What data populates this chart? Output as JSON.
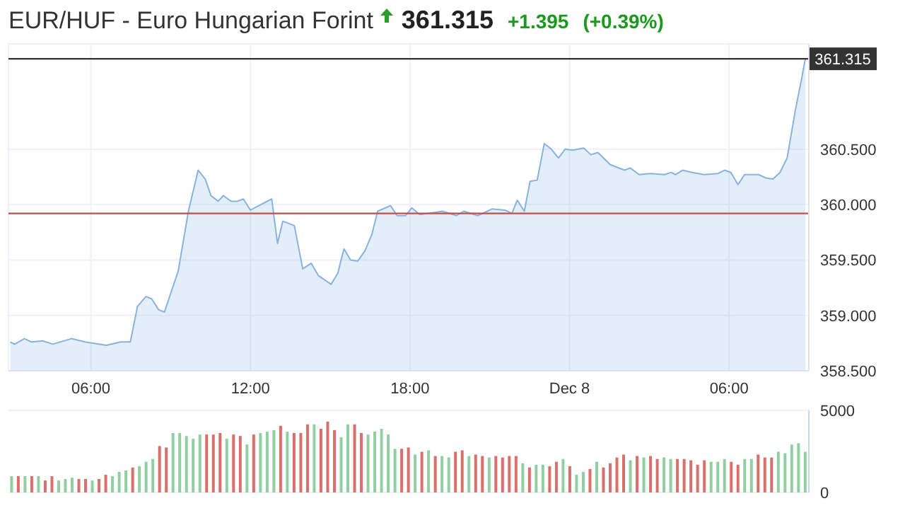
{
  "chart_data": [
    {
      "type": "area",
      "title": "EUR/HUF - Euro Hungarian Forint",
      "annotations": [
        "361.315",
        "+1.395",
        "(+0.39%)"
      ],
      "x": [
        "--12-07T02:58",
        "--12-07T03:08",
        "--12-07T03:30",
        "--12-07T03:46",
        "--12-07T04:11",
        "--12-07T04:34",
        "--12-07T05:16",
        "--12-07T05:47",
        "--12-07T06:35",
        "--12-07T07:07",
        "--12-07T07:29",
        "--12-07T07:45",
        "--12-07T08:04",
        "--12-07T08:17",
        "--12-07T08:33",
        "--12-07T08:46",
        "--12-07T09:17",
        "--12-07T09:40",
        "--12-07T10:02",
        "--12-07T10:18",
        "--12-07T10:31",
        "--12-07T10:47",
        "--12-07T10:59",
        "--12-07T11:16",
        "--12-07T11:31",
        "--12-07T11:44",
        "--12-07T12:00",
        "--12-07T12:19",
        "--12-07T12:48",
        "--12-07T13:01",
        "--12-07T13:13",
        "--12-07T13:39",
        "--12-07T13:58",
        "--12-07T14:17",
        "--12-07T14:33",
        "--12-07T15:02",
        "--12-07T15:17",
        "--12-07T15:31",
        "--12-07T15:46",
        "--12-07T16:02",
        "--12-07T16:18",
        "--12-07T16:34",
        "--12-07T16:47",
        "--12-07T17:16",
        "--12-07T17:31",
        "--12-07T17:50",
        "--12-07T18:04",
        "--12-07T18:22",
        "--12-07T18:41",
        "--12-07T19:13",
        "--12-07T19:45",
        "--12-07T20:01",
        "--12-07T20:33",
        "--12-07T21:05",
        "--12-07T21:34",
        "--12-07T21:50",
        "--12-07T22:02",
        "--12-07T22:18",
        "--12-07T22:31",
        "--12-07T22:47",
        "--12-07T23:03",
        "--12-07T23:19",
        "--12-07T23:35",
        "--12-07T23:50",
        "--12-08T00:07",
        "--12-08T00:32",
        "--12-08T00:48",
        "--12-08T01:04",
        "--12-08T01:32",
        "--12-08T02:04",
        "--12-08T02:17",
        "--12-08T02:37",
        "--12-08T03:02",
        "--12-08T03:34",
        "--12-08T03:50",
        "--12-08T03:59",
        "--12-08T04:15",
        "--12-08T04:37",
        "--12-08T05:03",
        "--12-08T05:35",
        "--12-08T05:50",
        "--12-08T06:04",
        "--12-08T06:20",
        "--12-08T06:35",
        "--12-08T07:07",
        "--12-08T07:23",
        "--12-08T07:39",
        "--12-08T07:55",
        "--12-08T08:11",
        "--12-08T08:30",
        "--12-08T08:43",
        "--12-08T08:52"
      ],
      "series": [
        {
          "color": "#86b3e0",
          "values": [
            358.76,
            358.74,
            358.79,
            358.76,
            358.77,
            358.74,
            358.79,
            358.76,
            358.73,
            358.76,
            358.76,
            359.08,
            359.17,
            359.15,
            359.05,
            359.03,
            359.4,
            359.94,
            360.31,
            360.23,
            360.08,
            360.03,
            360.08,
            360.03,
            360.03,
            360.05,
            359.95,
            359.99,
            360.05,
            359.65,
            359.85,
            359.81,
            359.42,
            359.47,
            359.36,
            359.28,
            359.38,
            359.6,
            359.5,
            359.49,
            359.58,
            359.73,
            359.94,
            359.99,
            359.9,
            359.9,
            359.97,
            359.91,
            359.92,
            359.94,
            359.9,
            359.94,
            359.9,
            359.96,
            359.95,
            359.92,
            360.04,
            359.94,
            360.21,
            360.22,
            360.55,
            360.5,
            360.42,
            360.5,
            360.49,
            360.51,
            360.45,
            360.47,
            360.36,
            360.31,
            360.33,
            360.27,
            360.28,
            360.27,
            360.29,
            360.27,
            360.31,
            360.29,
            360.27,
            360.28,
            360.31,
            360.29,
            360.18,
            360.27,
            360.27,
            360.24,
            360.23,
            360.29,
            360.42,
            360.86,
            361.12,
            361.315
          ]
        }
      ],
      "xlim": [
        "--12-07T02:54",
        "--12-08T09:00"
      ],
      "xticks": [
        {
          "value": "--12-07T06:00",
          "label": "06:00"
        },
        {
          "value": "--12-07T12:00",
          "label": "12:00"
        },
        {
          "value": "--12-07T18:00",
          "label": "18:00"
        },
        {
          "value": "--12-08",
          "label": "Dec 8"
        },
        {
          "value": "--12-08T06:00",
          "label": "06:00"
        }
      ],
      "ylim": [
        358.5,
        361.45
      ],
      "yticks": [
        {
          "value": 358.5,
          "label": "358.500"
        },
        {
          "value": 359,
          "label": "359.000"
        },
        {
          "value": 359.5,
          "label": "359.500"
        },
        {
          "value": 360,
          "label": "360.000"
        },
        {
          "value": 360.5,
          "label": "360.500"
        }
      ],
      "ref_lines": [
        {
          "axis": "y",
          "value": 361.315,
          "label": "361.315",
          "color": "#333333"
        },
        {
          "axis": "y",
          "value": 359.92,
          "color": "#c0504d"
        }
      ],
      "grid": true,
      "marker": "none",
      "line_style": "solid"
    },
    {
      "type": "bar",
      "tick_labels": "y",
      "grid": "y",
      "categories": [
        null,
        null,
        null,
        null,
        null,
        null,
        null,
        null,
        null,
        null,
        null,
        null,
        null,
        null,
        null,
        null,
        null,
        null,
        null,
        null,
        null,
        null,
        null,
        null,
        null,
        null,
        null,
        null,
        null,
        null,
        null,
        null,
        null,
        null,
        null,
        null,
        null,
        null,
        null,
        null,
        null,
        null,
        null,
        null,
        null,
        null,
        null,
        null,
        null,
        null,
        null,
        null,
        null,
        null,
        null,
        null,
        null,
        null,
        null,
        null,
        null,
        null,
        null,
        null,
        null,
        null,
        null,
        null,
        null,
        null,
        null,
        null,
        null,
        null,
        null,
        null,
        null,
        null,
        null,
        null,
        null,
        null,
        null,
        null,
        null,
        null,
        null,
        null,
        null,
        null,
        null,
        null,
        null,
        null,
        null,
        null,
        null,
        null,
        null,
        null,
        null,
        null,
        null,
        null,
        null,
        null,
        null,
        null,
        null,
        null,
        null,
        null,
        null,
        null,
        null,
        null,
        null,
        null,
        null
      ],
      "values": [
        990,
        990,
        990,
        990,
        990,
        730,
        990,
        730,
        820,
        900,
        820,
        820,
        730,
        820,
        1080,
        990,
        1250,
        1340,
        1520,
        1600,
        1870,
        2040,
        2830,
        2740,
        3620,
        3620,
        3440,
        3270,
        3530,
        3530,
        3530,
        3620,
        3270,
        3530,
        3440,
        2920,
        3530,
        3620,
        3710,
        3800,
        4060,
        3710,
        3620,
        3620,
        4150,
        4150,
        3880,
        4320,
        3800,
        3360,
        4150,
        4150,
        3620,
        3530,
        3710,
        3880,
        3530,
        2660,
        2660,
        2740,
        2310,
        2480,
        2570,
        2220,
        2220,
        2130,
        2480,
        2570,
        2220,
        2310,
        2220,
        2130,
        2220,
        2130,
        2220,
        2220,
        1780,
        1520,
        1690,
        1690,
        1600,
        1870,
        2040,
        1600,
        1080,
        1250,
        1430,
        1870,
        1520,
        1780,
        2130,
        2310,
        1960,
        2220,
        2130,
        2220,
        2040,
        2130,
        2040,
        2040,
        2040,
        1960,
        1690,
        1960,
        1870,
        1870,
        2040,
        1870,
        1690,
        2040,
        2040,
        2310,
        2130,
        2130,
        2480,
        2390,
        2920,
        3000,
        2480
      ],
      "colors": [
        "#91cfa1",
        "#d9706b",
        "#91cfa1",
        "#d9706b",
        "#91cfa1",
        "#d9706b",
        "#d9706b",
        "#91cfa1",
        "#91cfa1",
        "#91cfa1",
        "#d9706b",
        "#d9706b",
        "#91cfa1",
        "#d9706b",
        "#d9706b",
        "#91cfa1",
        "#91cfa1",
        "#91cfa1",
        "#d9706b",
        "#91cfa1",
        "#91cfa1",
        "#91cfa1",
        "#d9706b",
        "#d9706b",
        "#91cfa1",
        "#91cfa1",
        "#91cfa1",
        "#91cfa1",
        "#91cfa1",
        "#d9706b",
        "#d9706b",
        "#d9706b",
        "#91cfa1",
        "#d9706b",
        "#d9706b",
        "#91cfa1",
        "#d9706b",
        "#91cfa1",
        "#91cfa1",
        "#91cfa1",
        "#d9706b",
        "#91cfa1",
        "#d9706b",
        "#d9706b",
        "#d9706b",
        "#91cfa1",
        "#d9706b",
        "#d9706b",
        "#d9706b",
        "#91cfa1",
        "#91cfa1",
        "#d9706b",
        "#d9706b",
        "#91cfa1",
        "#91cfa1",
        "#91cfa1",
        "#91cfa1",
        "#91cfa1",
        "#d9706b",
        "#d9706b",
        "#91cfa1",
        "#d9706b",
        "#91cfa1",
        "#d9706b",
        "#91cfa1",
        "#91cfa1",
        "#d9706b",
        "#d9706b",
        "#91cfa1",
        "#d9706b",
        "#d9706b",
        "#91cfa1",
        "#d9706b",
        "#d9706b",
        "#d9706b",
        "#d9706b",
        "#91cfa1",
        "#d9706b",
        "#91cfa1",
        "#91cfa1",
        "#d9706b",
        "#d9706b",
        "#91cfa1",
        "#d9706b",
        "#91cfa1",
        "#91cfa1",
        "#d9706b",
        "#91cfa1",
        "#d9706b",
        "#d9706b",
        "#d9706b",
        "#d9706b",
        "#91cfa1",
        "#d9706b",
        "#91cfa1",
        "#d9706b",
        "#d9706b",
        "#91cfa1",
        "#91cfa1",
        "#d9706b",
        "#d9706b",
        "#d9706b",
        "#d9706b",
        "#d9706b",
        "#91cfa1",
        "#91cfa1",
        "#91cfa1",
        "#d9706b",
        "#d9706b",
        "#91cfa1",
        "#91cfa1",
        "#d9706b",
        "#d9706b",
        "#d9706b",
        "#91cfa1",
        "#91cfa1",
        "#91cfa1",
        "#91cfa1",
        "#91cfa1"
      ],
      "ylim": [
        0,
        5000
      ],
      "yticks": [
        0,
        5000
      ]
    }
  ]
}
